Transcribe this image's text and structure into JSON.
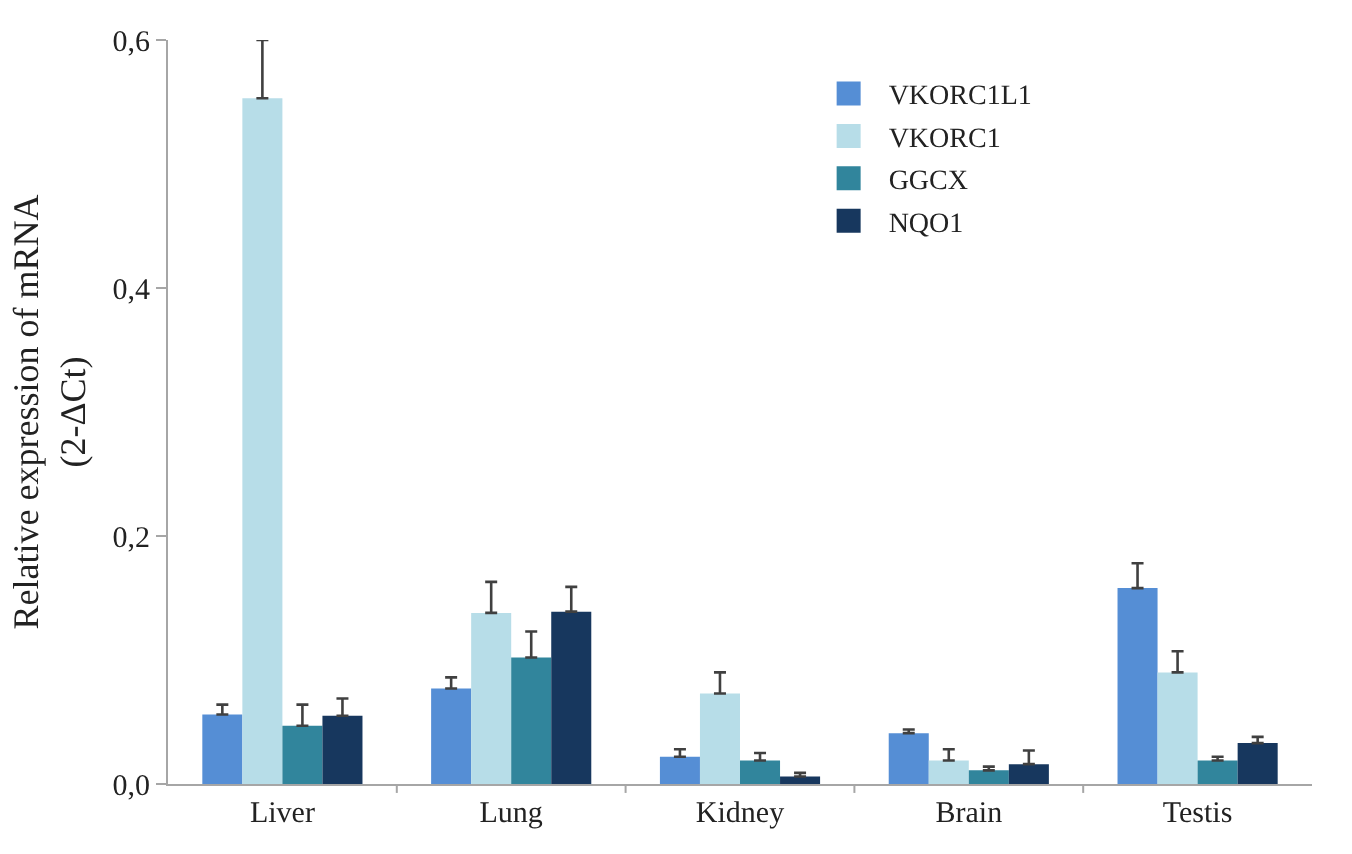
{
  "chart_data": {
    "type": "bar",
    "ylabel": "Relative expression of mRNA\n(2-ΔCt)",
    "categories": [
      "Liver",
      "Lung",
      "Kidney",
      "Brain",
      "Testis"
    ],
    "series": [
      {
        "name": "VKORC1L1",
        "color": "#558ed5",
        "values": [
          0.056,
          0.077,
          0.022,
          0.041,
          0.158
        ],
        "errors": [
          [
            0.056,
            0.064
          ],
          [
            0.077,
            0.086
          ],
          [
            0.022,
            0.028
          ],
          [
            0.041,
            0.044
          ],
          [
            0.158,
            0.178
          ]
        ]
      },
      {
        "name": "VKORC1",
        "color": "#b7dde8",
        "values": [
          0.553,
          0.138,
          0.073,
          0.019,
          0.09
        ],
        "errors": [
          [
            0.553,
            0.6
          ],
          [
            0.138,
            0.163
          ],
          [
            0.073,
            0.09
          ],
          [
            0.019,
            0.028
          ],
          [
            0.09,
            0.107
          ]
        ]
      },
      {
        "name": "GGCX",
        "color": "#31859c",
        "values": [
          0.047,
          0.102,
          0.019,
          0.011,
          0.019
        ],
        "errors": [
          [
            0.047,
            0.064
          ],
          [
            0.102,
            0.123
          ],
          [
            0.019,
            0.025
          ],
          [
            0.011,
            0.014
          ],
          [
            0.019,
            0.022
          ]
        ]
      },
      {
        "name": "NQO1",
        "color": "#17375e",
        "values": [
          0.055,
          0.139,
          0.006,
          0.016,
          0.033
        ],
        "errors": [
          [
            0.055,
            0.069
          ],
          [
            0.139,
            0.159
          ],
          [
            0.006,
            0.009
          ],
          [
            0.016,
            0.027
          ],
          [
            0.033,
            0.038
          ]
        ]
      }
    ],
    "ylim": [
      0,
      0.6
    ],
    "yticks": [
      {
        "value": 0,
        "label": "0,0"
      },
      {
        "value": 0.2,
        "label": "0,2"
      },
      {
        "value": 0.4,
        "label": "0,4"
      },
      {
        "value": 0.6,
        "label": "0,6"
      }
    ],
    "legend": "top right"
  }
}
